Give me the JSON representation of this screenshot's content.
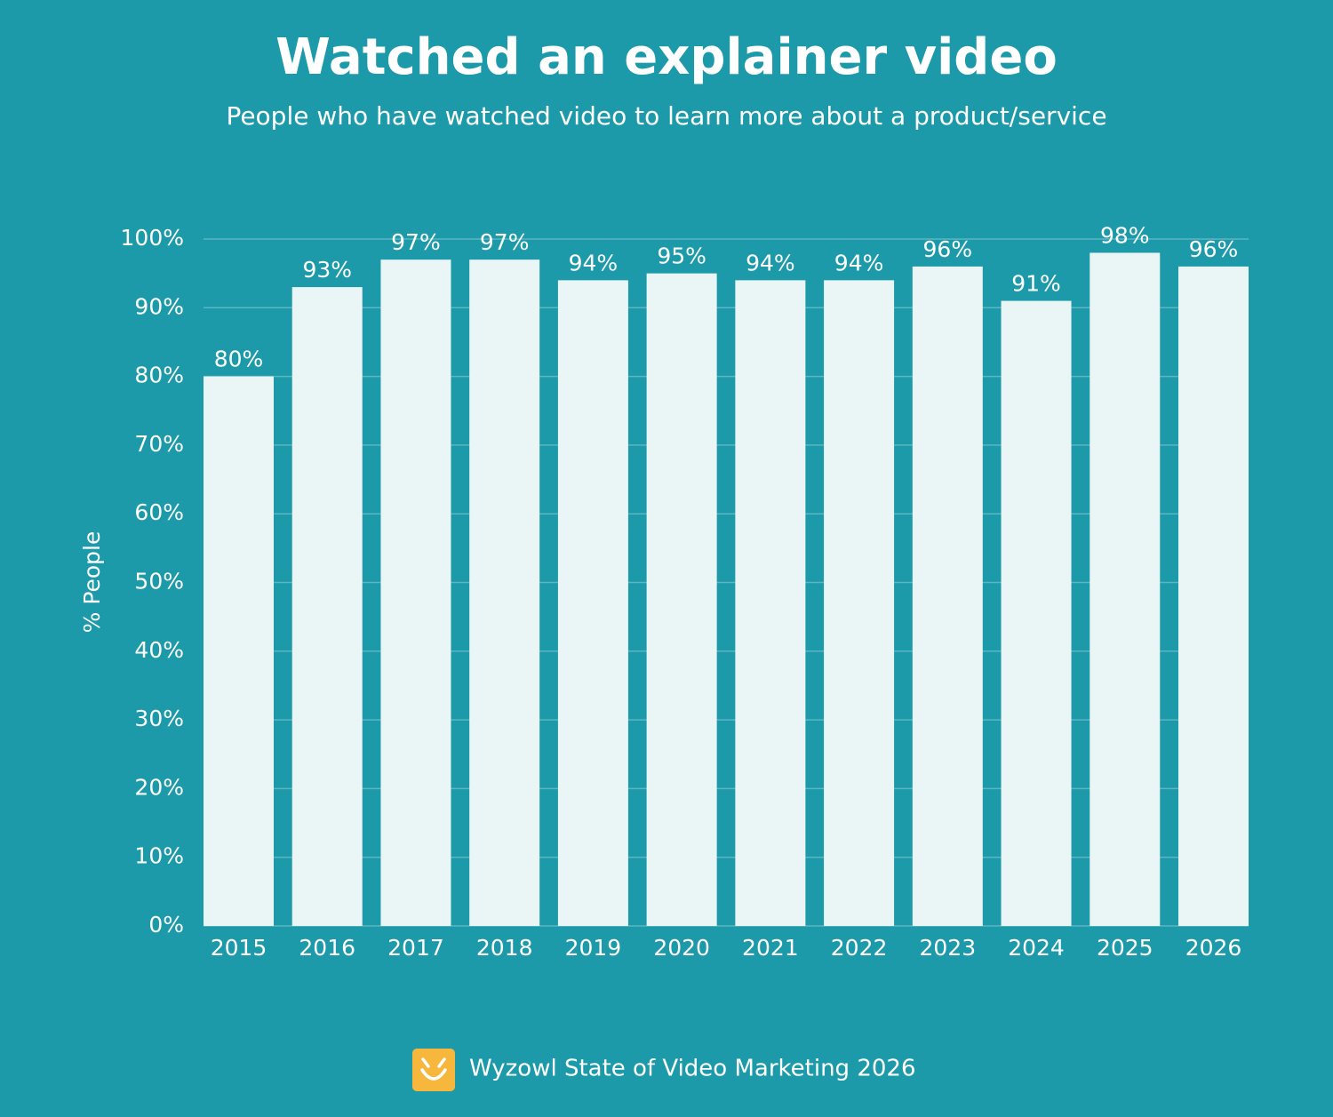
{
  "chart_data": {
    "type": "bar",
    "title": "Watched an explainer video",
    "subtitle": "People who have watched video to learn more about a product/service",
    "y_label": "% People",
    "source": "Wyzowl State of Video Marketing 2026",
    "categories": [
      "2015",
      "2016",
      "2017",
      "2018",
      "2019",
      "2020",
      "2021",
      "2022",
      "2023",
      "2024",
      "2025",
      "2026"
    ],
    "values": [
      80,
      93,
      97,
      97,
      94,
      95,
      94,
      94,
      96,
      91,
      98,
      96
    ],
    "value_labels": [
      "80%",
      "93%",
      "97%",
      "97%",
      "94%",
      "95%",
      "94%",
      "94%",
      "96%",
      "91%",
      "98%",
      "96%"
    ],
    "color": "#eaf6f5",
    "ylim": [
      0,
      100
    ],
    "yticks": [
      {
        "value": 0,
        "label": "0%"
      },
      {
        "value": 10,
        "label": "10%"
      },
      {
        "value": 20,
        "label": "20%"
      },
      {
        "value": 30,
        "label": "30%"
      },
      {
        "value": 40,
        "label": "40%"
      },
      {
        "value": 50,
        "label": "50%"
      },
      {
        "value": 60,
        "label": "60%"
      },
      {
        "value": 70,
        "label": "70%"
      },
      {
        "value": 80,
        "label": "80%"
      },
      {
        "value": 90,
        "label": "90%"
      },
      {
        "value": 100,
        "label": "100%"
      }
    ],
    "grid": true
  }
}
